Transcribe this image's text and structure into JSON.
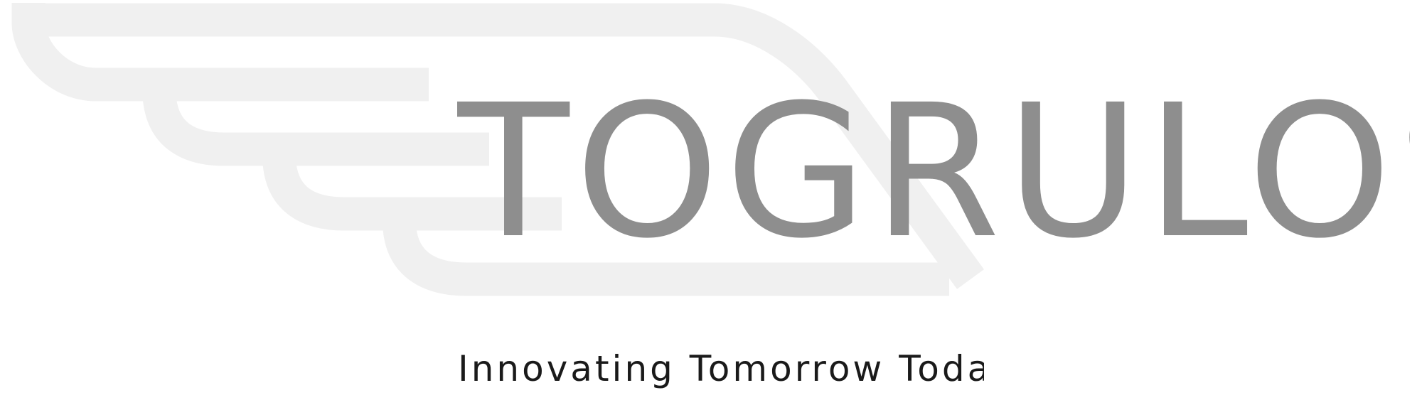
{
  "brand": {
    "name": "TOGRULOS",
    "tagline": "Innovating Tomorrow Today"
  },
  "colors": {
    "background": "#ffffff",
    "wordmark": "#8e8e8e",
    "wing": "#f0f0f0",
    "tagline": "#1a1a1a"
  }
}
